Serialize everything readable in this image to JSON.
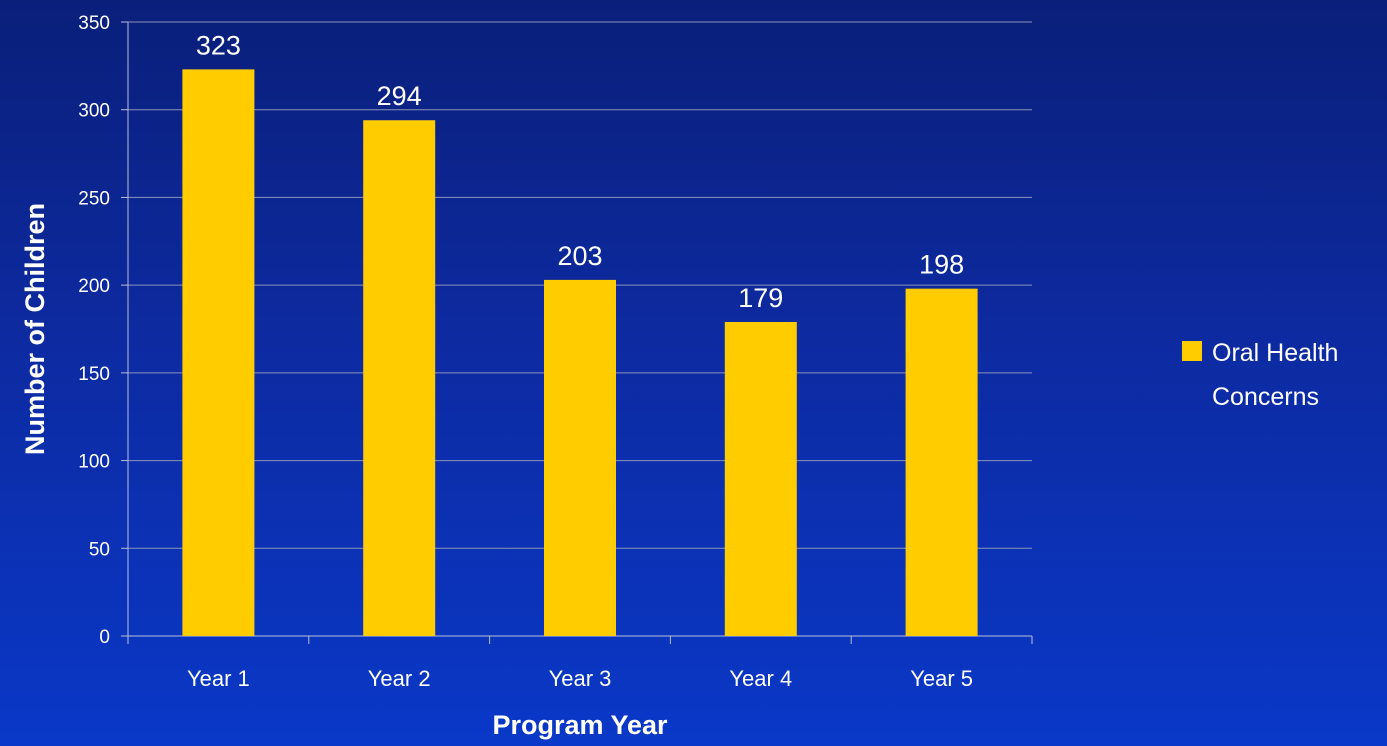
{
  "chart_data": {
    "type": "bar",
    "categories": [
      "Year 1",
      "Year 2",
      "Year 3",
      "Year 4",
      "Year 5"
    ],
    "series": [
      {
        "name": "Oral Health Concerns",
        "values": [
          323,
          294,
          203,
          179,
          198
        ]
      }
    ],
    "xlabel": "Program Year",
    "ylabel": "Number of Children",
    "ylim": [
      0,
      350
    ],
    "yticks": [
      0,
      50,
      100,
      150,
      200,
      250,
      300,
      350
    ],
    "grid": true,
    "legend": "right",
    "data_labels": true,
    "colors": {
      "bar": "#ffcc00",
      "gridline": "#8a95b8",
      "axis": "#b8c0d8",
      "text": "#ffffff"
    }
  },
  "legend": {
    "lines": [
      "Oral Health",
      "Concerns"
    ]
  }
}
